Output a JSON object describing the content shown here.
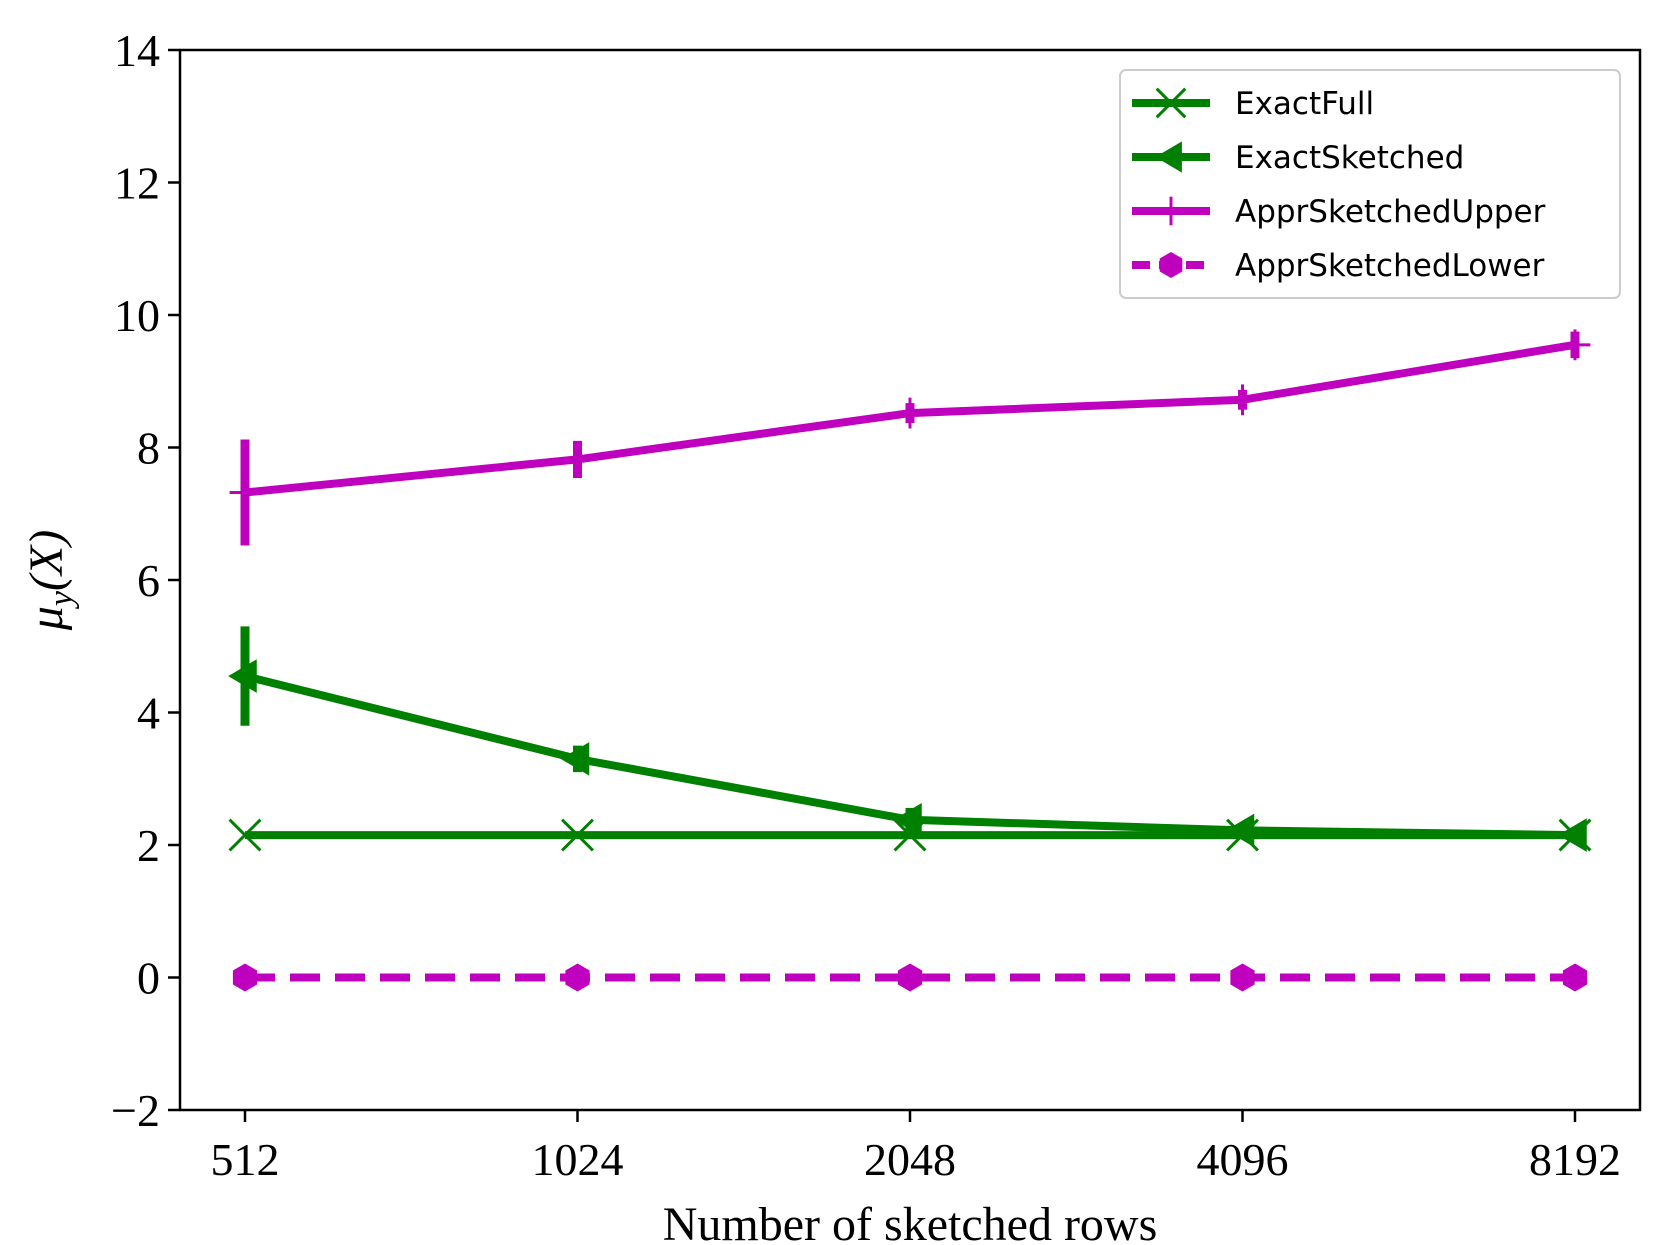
{
  "chart_data": {
    "type": "line",
    "title": "",
    "xlabel": "Number of sketched rows",
    "ylabel": "μ_y(X)",
    "ylabel_parts": {
      "main": "μ",
      "sub": "y",
      "arg": "(X)"
    },
    "categories": [
      "512",
      "1024",
      "2048",
      "4096",
      "8192"
    ],
    "ylim": [
      -2,
      14
    ],
    "yticks": [
      -2,
      0,
      2,
      4,
      6,
      8,
      10,
      12,
      14
    ],
    "ytick_labels": [
      "−2",
      "0",
      "2",
      "4",
      "6",
      "8",
      "10",
      "12",
      "14"
    ],
    "grid": false,
    "legend_position": "top-right",
    "series": [
      {
        "name": "ExactFull",
        "color": "#008000",
        "marker": "x",
        "dashed": false,
        "values": [
          2.15,
          2.15,
          2.15,
          2.15,
          2.15
        ],
        "errors": [
          0,
          0,
          0,
          0,
          0
        ]
      },
      {
        "name": "ExactSketched",
        "color": "#008000",
        "marker": "tri-left",
        "dashed": false,
        "values": [
          4.55,
          3.3,
          2.38,
          2.22,
          2.15
        ],
        "errors": [
          0.75,
          0.2,
          0.18,
          0.1,
          0.05
        ]
      },
      {
        "name": "ApprSketchedUpper",
        "color": "#bf00bf",
        "marker": "plus",
        "dashed": false,
        "values": [
          7.32,
          7.82,
          8.52,
          8.72,
          9.55
        ],
        "errors": [
          0.8,
          0.28,
          0.15,
          0.15,
          0.2
        ]
      },
      {
        "name": "ApprSketchedLower",
        "color": "#bf00bf",
        "marker": "hexagon",
        "dashed": true,
        "values": [
          0.0,
          0.0,
          0.0,
          0.0,
          0.0
        ],
        "errors": [
          0,
          0,
          0,
          0,
          0
        ]
      }
    ]
  }
}
